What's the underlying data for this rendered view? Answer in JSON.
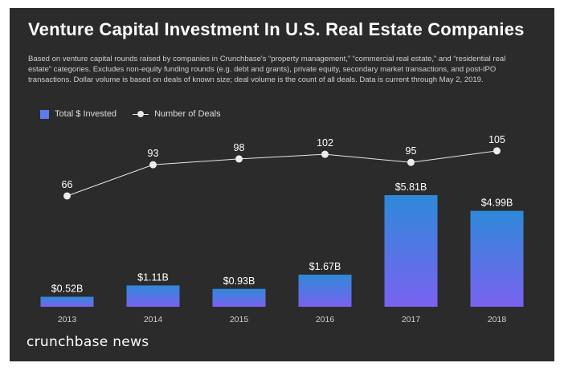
{
  "header": {
    "title": "Venture Capital Investment In U.S. Real Estate Companies",
    "description": "Based on venture capital rounds raised by companies in Crunchbase's “property management,” “commercial real estate,” and “residential real estate” categories. Excludes non-equity funding rounds (e.g. debt and grants), private equity, secondary market transactions, and post-IPO transactions. Dollar volume is based on deals of known size; deal volume is the count of all deals. Data is current through May 2, 2019."
  },
  "legend": {
    "bar_label": "Total $ Invested",
    "line_label": "Number of Deals"
  },
  "brand": "crunchbase news",
  "colors": {
    "background": "#2b2b2b",
    "bar_top": "#2e89d8",
    "bar_bottom": "#7a62f0",
    "line": "#e6e6e6",
    "text": "#ffffff"
  },
  "chart_data": {
    "type": "bar+line",
    "categories": [
      "2013",
      "2014",
      "2015",
      "2016",
      "2017",
      "2018"
    ],
    "series": [
      {
        "name": "Total $ Invested",
        "type": "bar",
        "values": [
          0.52,
          1.11,
          0.93,
          1.67,
          5.81,
          4.99
        ],
        "labels": [
          "$0.52B",
          "$1.11B",
          "$0.93B",
          "$1.67B",
          "$5.81B",
          "$4.99B"
        ]
      },
      {
        "name": "Number of Deals",
        "type": "line",
        "values": [
          66,
          93,
          98,
          102,
          95,
          105
        ],
        "labels": [
          "66",
          "93",
          "98",
          "102",
          "95",
          "105"
        ]
      }
    ],
    "legend_position": "top-left",
    "grid": false
  }
}
